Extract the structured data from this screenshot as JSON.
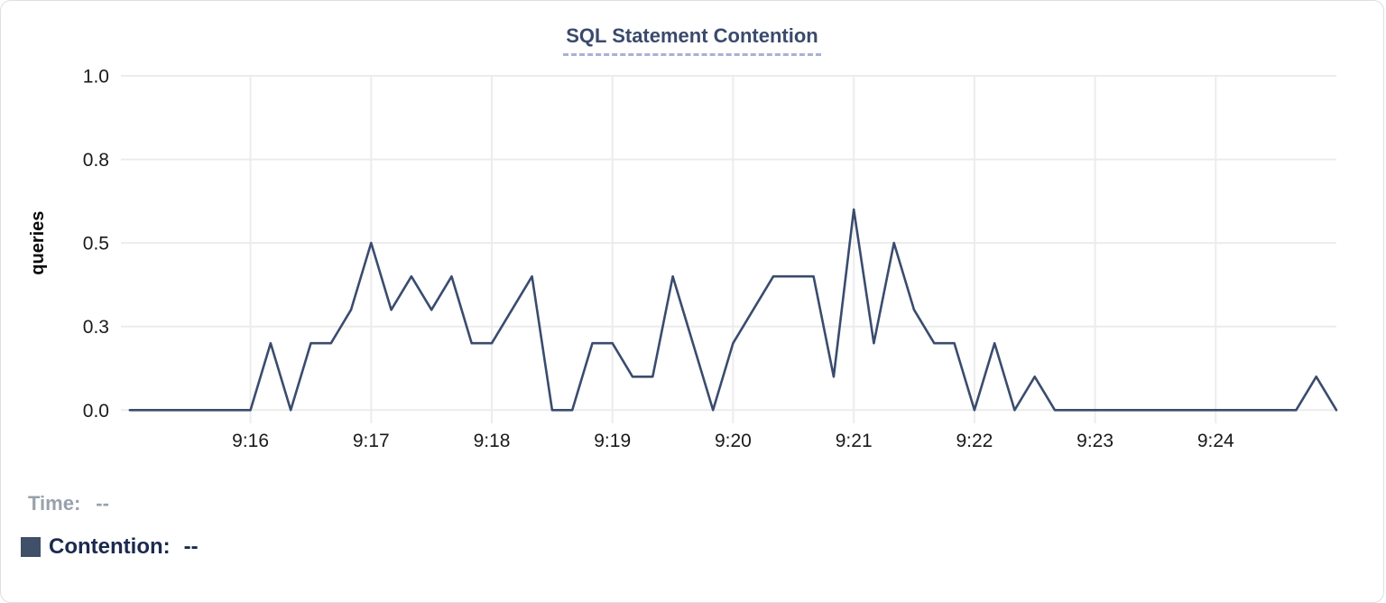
{
  "header": {
    "title": "SQL Statement Contention"
  },
  "legend": {
    "time_label": "Time:",
    "time_value": "--",
    "contention_label": "Contention:",
    "contention_value": "--",
    "swatch_color": "#3f5068"
  },
  "colors": {
    "line": "#3a4c6e",
    "grid": "#ececec",
    "title_text": "#3a4a6c",
    "title_underline": "#a9b1d6",
    "legend_navy": "#1b2a4e",
    "legend_gray": "#99a1ab"
  },
  "chart_data": {
    "type": "line",
    "title": "SQL Statement Contention",
    "xlabel": "",
    "ylabel": "queries",
    "ylim": [
      0,
      1
    ],
    "grid": true,
    "legend_position": "bottom-left",
    "line_color": "#3a4c6e",
    "grid_color": "#ececec",
    "y_ticks": [
      {
        "value": 0.0,
        "label": "0.0"
      },
      {
        "value": 0.25,
        "label": "0.3"
      },
      {
        "value": 0.5,
        "label": "0.5"
      },
      {
        "value": 0.75,
        "label": "0.8"
      },
      {
        "value": 1.0,
        "label": "1.0"
      }
    ],
    "x_tick_labels": [
      "9:16",
      "9:17",
      "9:18",
      "9:19",
      "9:20",
      "9:21",
      "9:22",
      "9:23",
      "9:24"
    ],
    "series": [
      {
        "name": "Contention",
        "unit": "queries",
        "interval_seconds": 10,
        "x": [
          "9:15:00",
          "9:15:10",
          "9:15:20",
          "9:15:30",
          "9:15:40",
          "9:15:50",
          "9:16:00",
          "9:16:10",
          "9:16:20",
          "9:16:30",
          "9:16:40",
          "9:16:50",
          "9:17:00",
          "9:17:10",
          "9:17:20",
          "9:17:30",
          "9:17:40",
          "9:17:50",
          "9:18:00",
          "9:18:10",
          "9:18:20",
          "9:18:30",
          "9:18:40",
          "9:18:50",
          "9:19:00",
          "9:19:10",
          "9:19:20",
          "9:19:30",
          "9:19:40",
          "9:19:50",
          "9:20:00",
          "9:20:10",
          "9:20:20",
          "9:20:30",
          "9:20:40",
          "9:20:50",
          "9:21:00",
          "9:21:10",
          "9:21:20",
          "9:21:30",
          "9:21:40",
          "9:21:50",
          "9:22:00",
          "9:22:10",
          "9:22:20",
          "9:22:30",
          "9:22:40",
          "9:22:50",
          "9:23:00",
          "9:23:10",
          "9:23:20",
          "9:23:30",
          "9:23:40",
          "9:23:50",
          "9:24:00",
          "9:24:10",
          "9:24:20",
          "9:24:30",
          "9:24:40",
          "9:24:50",
          "9:25:00"
        ],
        "values": [
          0,
          0,
          0,
          0,
          0,
          0,
          0,
          0.2,
          0,
          0.2,
          0.2,
          0.3,
          0.5,
          0.3,
          0.4,
          0.3,
          0.4,
          0.2,
          0.2,
          0.3,
          0.4,
          0,
          0,
          0.2,
          0.2,
          0.1,
          0.1,
          0.4,
          0.2,
          0,
          0.2,
          0.3,
          0.4,
          0.4,
          0.4,
          0.1,
          0.6,
          0.2,
          0.5,
          0.3,
          0.2,
          0.2,
          0,
          0.2,
          0,
          0.1,
          0,
          0,
          0,
          0,
          0,
          0,
          0,
          0,
          0,
          0,
          0,
          0,
          0,
          0.1,
          0
        ]
      }
    ]
  }
}
